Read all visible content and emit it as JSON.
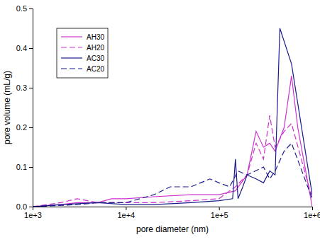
{
  "chart_data": {
    "type": "line",
    "x_label": "pore diameter (nm)",
    "y_label": "pore volume (mL/g)",
    "log": "x",
    "legend": "upper left",
    "xlim": [
      1000,
      1000000
    ],
    "xticks": [
      {
        "value": 1000,
        "label": "1e+3"
      },
      {
        "value": 10000,
        "label": "1e+4"
      },
      {
        "value": 100000,
        "label": "1e+5"
      },
      {
        "value": 1000000,
        "label": "1e+6"
      }
    ],
    "ylim": [
      0,
      0.5
    ],
    "yticks": [
      {
        "value": 0,
        "label": "0.0"
      },
      0.1,
      0.2,
      0.3,
      0.4,
      0.5
    ],
    "series": [
      {
        "name": "AH30",
        "color": "#cc33cc",
        "line_style": "solid",
        "x": [
          1000,
          2000,
          3000,
          5000,
          7000,
          10000,
          20000,
          50000,
          100000,
          150000,
          200000,
          250000,
          300000,
          350000,
          400000,
          500000,
          600000,
          700000,
          1000000
        ],
        "values": [
          0,
          0.005,
          0.01,
          0.01,
          0.02,
          0.02,
          0.025,
          0.03,
          0.03,
          0.04,
          0.08,
          0.19,
          0.15,
          0.16,
          0.14,
          0.2,
          0.33,
          0.2,
          0.0
        ]
      },
      {
        "name": "AH20",
        "color": "#cc33cc",
        "line_style": "dashed",
        "x": [
          1000,
          2000,
          3000,
          5000,
          10000,
          20000,
          50000,
          100000,
          150000,
          200000,
          250000,
          300000,
          350000,
          400000,
          500000,
          600000,
          1000000
        ],
        "values": [
          0,
          0.01,
          0.02,
          0.01,
          0.01,
          0.01,
          0.015,
          0.02,
          0.05,
          0.08,
          0.16,
          0.12,
          0.23,
          0.15,
          0.19,
          0.21,
          0.02
        ]
      },
      {
        "name": "AC30",
        "color": "#1a1a8c",
        "line_style": "solid",
        "x": [
          1000,
          2000,
          5000,
          10000,
          20000,
          50000,
          100000,
          140000,
          150000,
          160000,
          180000,
          200000,
          250000,
          300000,
          350000,
          400000,
          450000,
          600000,
          1000000
        ],
        "values": [
          0,
          0.005,
          0.01,
          0.005,
          0.005,
          0.01,
          0.015,
          0.02,
          0.12,
          0.02,
          0.05,
          0.08,
          0.07,
          0.06,
          0.09,
          0.08,
          0.45,
          0.36,
          0.03
        ]
      },
      {
        "name": "AC20",
        "color": "#1a1a8c",
        "line_style": "dashed",
        "x": [
          1000,
          3000,
          5000,
          10000,
          20000,
          30000,
          50000,
          80000,
          100000,
          130000,
          160000,
          200000,
          300000,
          350000,
          400000,
          500000,
          600000,
          1000000
        ],
        "values": [
          0,
          0.005,
          0.01,
          0.01,
          0.03,
          0.05,
          0.05,
          0.07,
          0.06,
          0.05,
          0.09,
          0.08,
          0.1,
          0.07,
          0.09,
          0.14,
          0.16,
          0.02
        ]
      }
    ]
  }
}
